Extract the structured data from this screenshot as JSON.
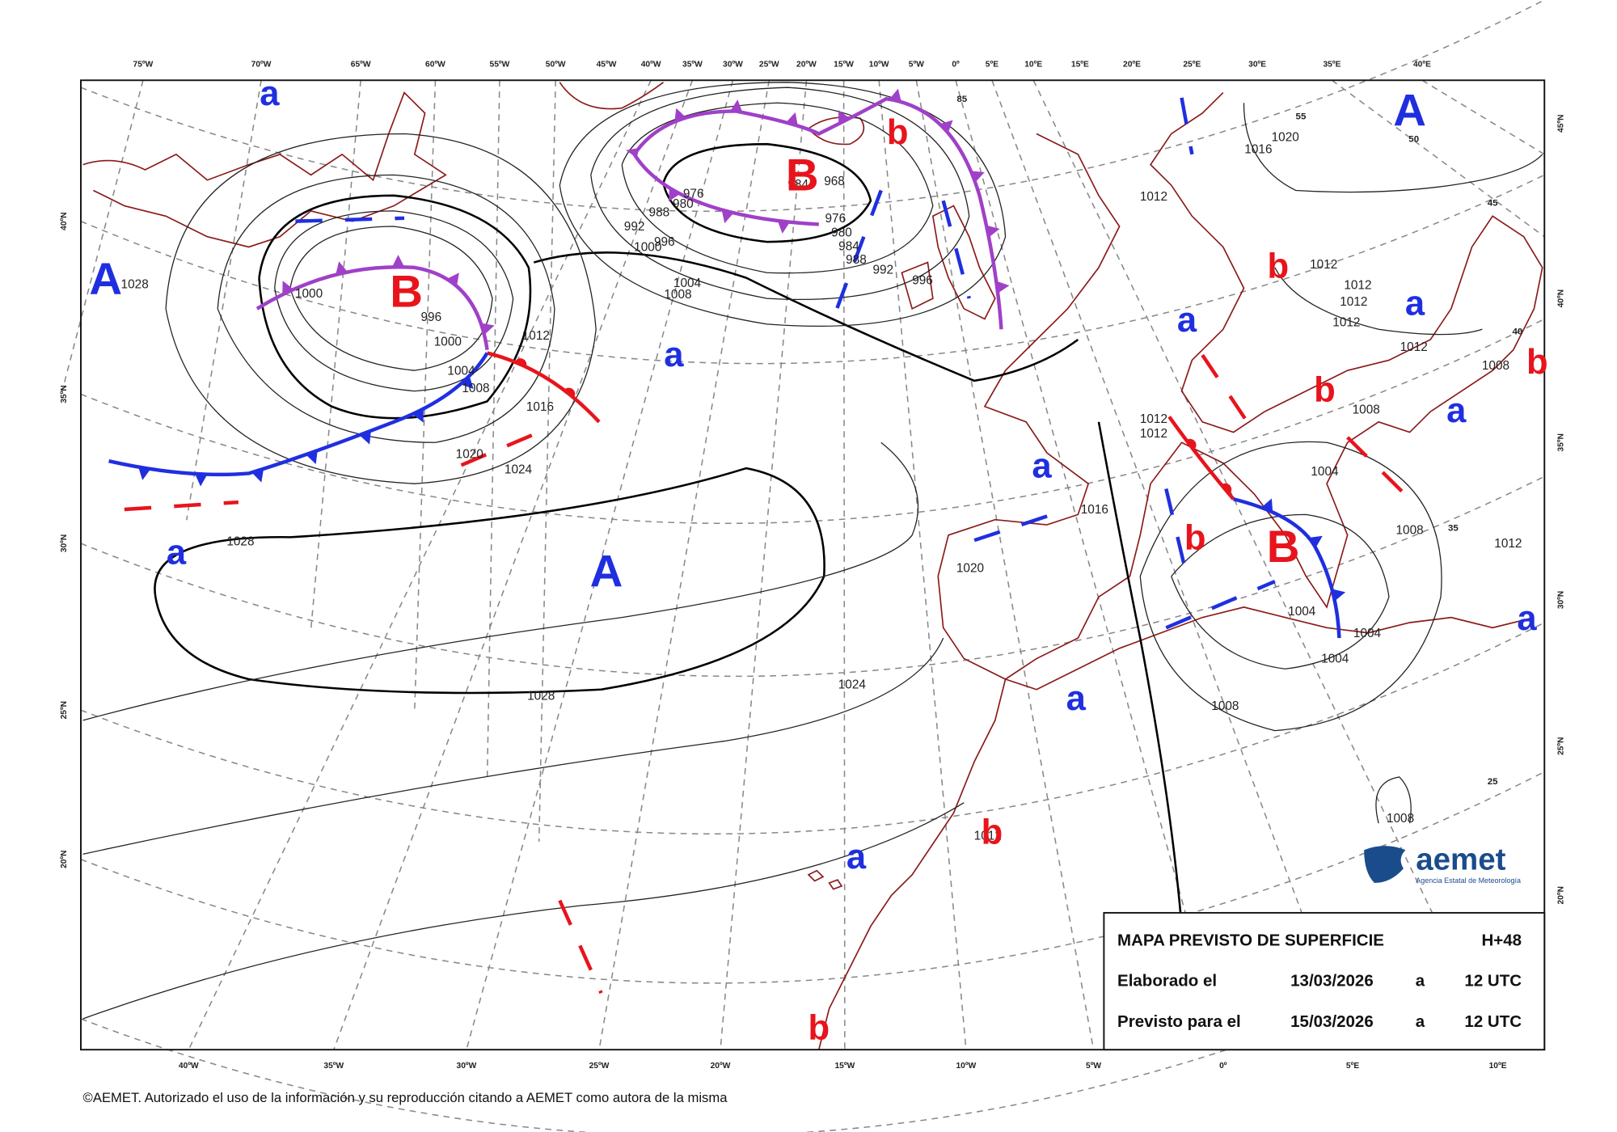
{
  "map": {
    "top_labels": [
      "75ºW",
      "70ºW",
      "65ºW",
      "60ºW",
      "55ºW",
      "50ºW",
      "45ºW",
      "40ºW",
      "35ºW",
      "30ºW",
      "25ºW",
      "20ºW",
      "15ºW",
      "10ºW",
      "5ºW",
      "0º",
      "5ºE",
      "10ºE",
      "15ºE",
      "20ºE",
      "25ºE",
      "30ºE",
      "35ºE",
      "40ºE"
    ],
    "bottom_labels": [
      "40ºW",
      "35ºW",
      "30ºW",
      "25ºW",
      "20ºW",
      "15ºW",
      "10ºW",
      "5ºW",
      "0º",
      "5ºE",
      "10ºE"
    ],
    "left_labels": [
      "40ºN",
      "35ºN",
      "30ºN",
      "25ºN",
      "20ºN"
    ],
    "right_labels": [
      "45ºN",
      "40ºN",
      "35ºN",
      "30ºN",
      "25ºN",
      "20ºN"
    ],
    "grid_labels": [
      "85",
      "55",
      "50",
      "45",
      "40",
      "35",
      "25"
    ],
    "pressure_systems": [
      {
        "label": "A",
        "color": "#1f2fe0"
      },
      {
        "label": "a",
        "color": "#1f2fe0"
      },
      {
        "label": "B",
        "color": "#e8141c"
      },
      {
        "label": "a",
        "color": "#1f2fe0"
      },
      {
        "label": "A",
        "color": "#1f2fe0"
      },
      {
        "label": "a",
        "color": "#1f2fe0"
      },
      {
        "label": "b",
        "color": "#e8141c"
      },
      {
        "label": "B",
        "color": "#e8141c"
      },
      {
        "label": "A",
        "color": "#1f2fe0"
      },
      {
        "label": "a",
        "color": "#1f2fe0"
      },
      {
        "label": "b",
        "color": "#e8141c"
      },
      {
        "label": "a",
        "color": "#1f2fe0"
      },
      {
        "label": "b",
        "color": "#e8141c"
      },
      {
        "label": "b",
        "color": "#e8141c"
      },
      {
        "label": "a",
        "color": "#1f2fe0"
      },
      {
        "label": "a",
        "color": "#1f2fe0"
      },
      {
        "label": "b",
        "color": "#e8141c"
      },
      {
        "label": "B",
        "color": "#e8141c"
      },
      {
        "label": "a",
        "color": "#1f2fe0"
      },
      {
        "label": "a",
        "color": "#1f2fe0"
      },
      {
        "label": "b",
        "color": "#e8141c"
      },
      {
        "label": "a",
        "color": "#1f2fe0"
      },
      {
        "label": "b",
        "color": "#e8141c"
      }
    ],
    "isobar_labels": [
      "1028",
      "1028",
      "1028",
      "1024",
      "1024",
      "1020",
      "1016",
      "1012",
      "1008",
      "1004",
      "1000",
      "996",
      "1000",
      "996",
      "1000",
      "992",
      "988",
      "980",
      "976",
      "984",
      "968",
      "976",
      "980",
      "984",
      "988",
      "992",
      "996",
      "1004",
      "1008",
      "1012",
      "1016",
      "1020",
      "1012",
      "1012",
      "1012",
      "1012",
      "1012",
      "1008",
      "1008",
      "1004",
      "1008",
      "1012",
      "1016",
      "1020",
      "1004",
      "1004",
      "1004",
      "1008",
      "1008",
      "1012",
      "1012",
      "1012"
    ],
    "info_box": {
      "title": "MAPA PREVISTO DE SUPERFICIE",
      "lead": "H+48",
      "rows": [
        [
          "Elaborado el",
          "13/03/2026",
          "a",
          "12 UTC"
        ],
        [
          "Previsto para el",
          "15/03/2026",
          "a",
          "12 UTC"
        ]
      ]
    },
    "logo": {
      "name": "aemet",
      "subtitle": "Agencia Estatal de Meteorología"
    },
    "copyright": "©AEMET. Autorizado el uso de la información y su reproducción citando a AEMET como autora de la misma"
  }
}
